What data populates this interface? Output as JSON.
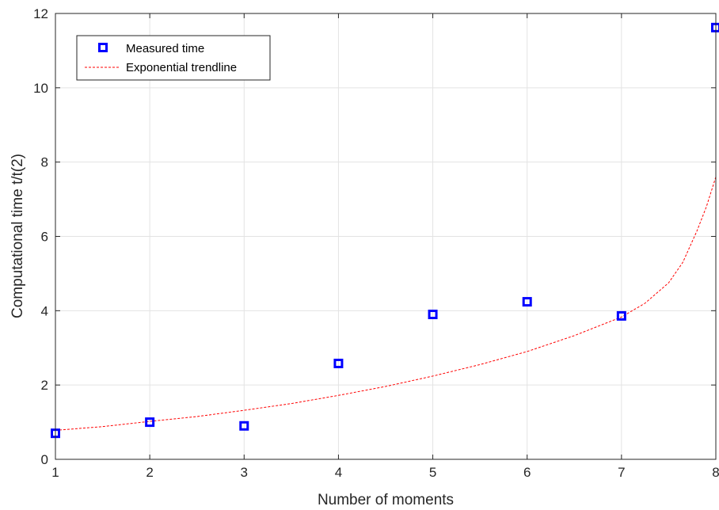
{
  "chart_data": {
    "type": "scatter",
    "xlabel": "Number of moments",
    "ylabel": "Computational time t/t(2)",
    "xlim": [
      1,
      8
    ],
    "ylim": [
      0,
      12
    ],
    "xticks": [
      1,
      2,
      3,
      4,
      5,
      6,
      7,
      8
    ],
    "yticks": [
      0,
      2,
      4,
      6,
      8,
      10,
      12
    ],
    "grid": true,
    "legend_position": "top-left",
    "series": [
      {
        "name": "Measured time",
        "kind": "markers",
        "marker": "square",
        "color": "#0000ff",
        "x": [
          1,
          2,
          3,
          4,
          5,
          6,
          7,
          8
        ],
        "y": [
          0.7,
          1.0,
          0.9,
          2.58,
          3.9,
          4.24,
          3.86,
          11.62
        ]
      },
      {
        "name": "Exponential trendline",
        "kind": "line",
        "style": "dashed",
        "color": "#ff0000",
        "x": [
          1,
          1.5,
          2,
          2.5,
          3,
          3.5,
          4,
          4.5,
          5,
          5.5,
          6,
          6.5,
          7,
          7.25,
          7.5,
          7.65,
          7.8,
          7.9,
          8
        ],
        "y": [
          0.78,
          0.88,
          1.02,
          1.15,
          1.32,
          1.5,
          1.72,
          1.96,
          2.24,
          2.55,
          2.9,
          3.33,
          3.83,
          4.2,
          4.75,
          5.3,
          6.15,
          6.8,
          7.6
        ]
      }
    ]
  }
}
